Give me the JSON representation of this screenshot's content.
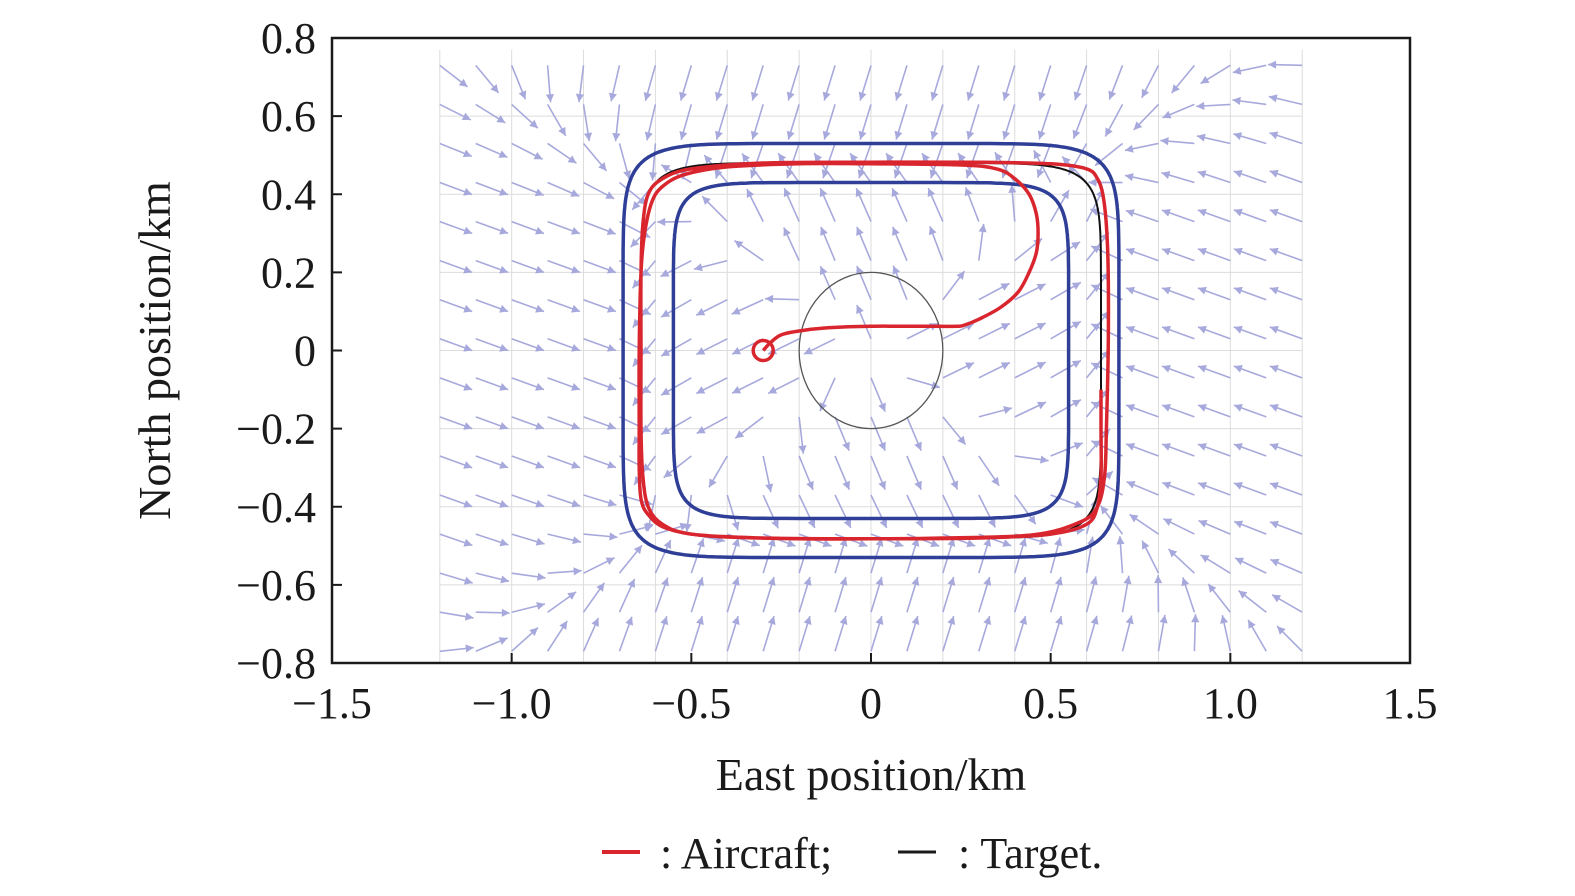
{
  "chart_data": {
    "type": "line",
    "title": "",
    "xlabel": "East position/km",
    "ylabel": "North position/km",
    "xlim": [
      -1.5,
      1.5
    ],
    "ylim": [
      -0.8,
      0.8
    ],
    "xticks": [
      -1.5,
      -1.0,
      -0.5,
      0,
      0.5,
      1.0,
      1.5
    ],
    "xtick_labels": [
      "−1.5",
      "−1.0",
      "−0.5",
      "0",
      "0.5",
      "1.0",
      "1.5"
    ],
    "yticks": [
      0.8,
      0.6,
      0.4,
      0.2,
      0,
      -0.2,
      -0.4,
      -0.6,
      -0.8
    ],
    "ytick_labels": [
      "0.8",
      "0.6",
      "0.4",
      "0.2",
      "0",
      "−0.2",
      "−0.4",
      "−0.6",
      "−0.8"
    ],
    "grid": true,
    "legend": {
      "placement": "bottom",
      "entries": [
        {
          "label": ": Aircraft;",
          "color": "#d9262e"
        },
        {
          "label": ": Target.",
          "color": "#1a1a1a"
        }
      ]
    },
    "colors": {
      "aircraft": "#d9262e",
      "target": "#111111",
      "boundary": "#2f3f97",
      "vector_field": "#a7a9dc",
      "obstacle": "#555555",
      "grid": "#dcdcdc"
    },
    "target_path": {
      "center": [
        0,
        0
      ],
      "half_width": 0.64,
      "half_height": 0.48,
      "shape_exponent": 8
    },
    "boundaries": [
      {
        "center": [
          0,
          0
        ],
        "half_width": 0.69,
        "half_height": 0.53,
        "shape_exponent": 8
      },
      {
        "center": [
          0,
          0
        ],
        "half_width": 0.55,
        "half_height": 0.43,
        "shape_exponent": 8
      }
    ],
    "obstacle": {
      "center": [
        0,
        0
      ],
      "radius_x": 0.2,
      "radius_y": 0.2
    },
    "aircraft_start": [
      -0.3,
      0
    ],
    "aircraft_path": {
      "x": [
        -0.3,
        -0.28,
        -0.25,
        -0.2,
        -0.12,
        0.0,
        0.1,
        0.18,
        0.24,
        0.26,
        0.3,
        0.36,
        0.41,
        0.44,
        0.46,
        0.465,
        0.46,
        0.44,
        0.4,
        0.35,
        0.25,
        0.0,
        -0.2,
        -0.4,
        -0.52,
        -0.58,
        -0.61,
        -0.63,
        -0.64,
        -0.645,
        -0.645,
        -0.645,
        -0.64,
        -0.62,
        -0.57,
        -0.45,
        -0.2,
        0.0,
        0.2,
        0.45,
        0.58,
        0.63,
        0.65,
        0.655,
        0.66,
        0.66,
        0.655,
        0.645,
        0.63,
        0.6,
        0.5,
        0.3,
        0.0,
        -0.3,
        -0.5,
        -0.58,
        -0.62,
        -0.635,
        -0.64,
        -0.64,
        -0.64,
        -0.635,
        -0.62,
        -0.58,
        -0.5,
        -0.3,
        0.0,
        0.3,
        0.5,
        0.6,
        0.63,
        0.64,
        0.64,
        0.64
      ],
      "y": [
        0.0,
        0.02,
        0.04,
        0.05,
        0.058,
        0.062,
        0.062,
        0.062,
        0.062,
        0.065,
        0.08,
        0.11,
        0.15,
        0.2,
        0.25,
        0.3,
        0.35,
        0.4,
        0.44,
        0.465,
        0.475,
        0.478,
        0.478,
        0.47,
        0.45,
        0.42,
        0.38,
        0.3,
        0.2,
        0.0,
        -0.2,
        -0.3,
        -0.38,
        -0.42,
        -0.455,
        -0.475,
        -0.482,
        -0.482,
        -0.48,
        -0.472,
        -0.44,
        -0.4,
        -0.32,
        -0.2,
        0.0,
        0.2,
        0.32,
        0.4,
        0.44,
        0.465,
        0.478,
        0.482,
        0.482,
        0.48,
        0.465,
        0.44,
        0.4,
        0.32,
        0.2,
        0.0,
        -0.2,
        -0.32,
        -0.4,
        -0.445,
        -0.47,
        -0.48,
        -0.482,
        -0.48,
        -0.47,
        -0.445,
        -0.4,
        -0.32,
        -0.2,
        -0.1
      ]
    }
  }
}
